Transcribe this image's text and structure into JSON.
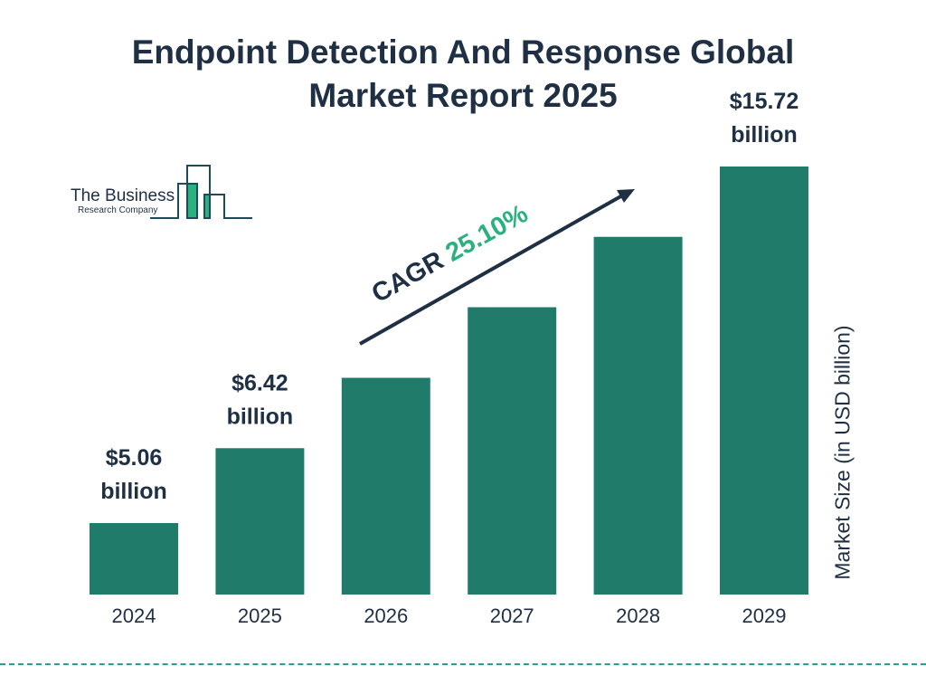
{
  "title_line1": "Endpoint Detection And Response Global",
  "title_line2": "Market Report 2025",
  "logo": {
    "line1": "The Business",
    "line2": "Research Company"
  },
  "colors": {
    "bar": "#217b6b",
    "text": "#1f3044",
    "accent": "#2bb07f"
  },
  "chart_data": {
    "type": "bar",
    "categories": [
      "2024",
      "2025",
      "2026",
      "2027",
      "2028",
      "2029"
    ],
    "values": [
      5.06,
      6.42,
      8.03,
      10.05,
      12.57,
      15.72
    ],
    "data_labels": [
      {
        "index": 0,
        "line1": "$5.06",
        "line2": "billion"
      },
      {
        "index": 1,
        "line1": "$6.42",
        "line2": "billion"
      },
      {
        "index": 5,
        "line1": "$15.72",
        "line2": "billion"
      }
    ],
    "ylabel": "Market Size (in USD billion)",
    "annotation": {
      "label": "CAGR",
      "value": "25.10%"
    },
    "grid": false
  }
}
